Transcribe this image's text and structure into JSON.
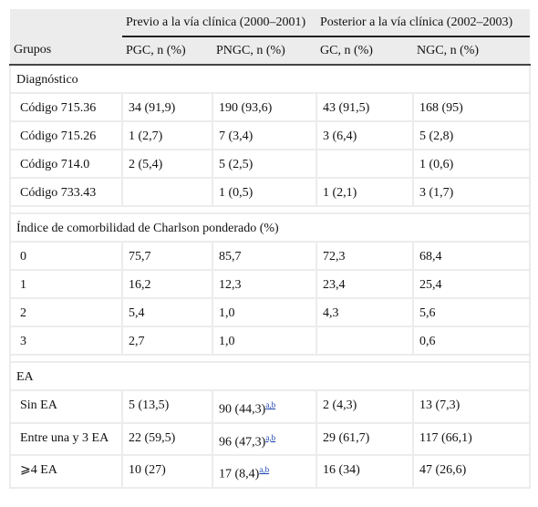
{
  "header": {
    "group_label": "Grupos",
    "spans": [
      "Previo a la vía clínica (2000–2001)",
      "Posterior a la vía clínica (2002–2003)"
    ],
    "columns": [
      "PGC, n (%)",
      "PNGC, n (%)",
      "GC, n (%)",
      "NGC, n (%)"
    ]
  },
  "sections": [
    {
      "title": "Diagnóstico",
      "rows": [
        [
          "Código 715.36",
          "34 (91,9)",
          "190 (93,6)",
          "43 (91,5)",
          "168 (95)"
        ],
        [
          "Código 715.26",
          "1 (2,7)",
          "7 (3,4)",
          "3 (6,4)",
          "5 (2,8)"
        ],
        [
          "Código 714.0",
          "2 (5,4)",
          "5 (2,5)",
          null,
          "1 (0,6)"
        ],
        [
          "Código 733.43",
          null,
          "1 (0,5)",
          "1 (2,1)",
          "3 (1,7)"
        ]
      ]
    },
    {
      "title": "Índice de comorbilidad de Charlson ponderado (%)",
      "rows": [
        [
          "0",
          "75,7",
          "85,7",
          "72,3",
          "68,4"
        ],
        [
          "1",
          "16,2",
          "12,3",
          "23,4",
          "25,4"
        ],
        [
          "2",
          "5,4",
          "1,0",
          "4,3",
          "5,6"
        ],
        [
          "3",
          "2,7",
          "1,0",
          null,
          "0,6"
        ]
      ]
    },
    {
      "title": "EA",
      "rows": [
        [
          "Sin EA",
          "5 (13,5)",
          {
            "text": "90 (44,3)",
            "sup": "a,b"
          },
          "2 (4,3)",
          "13 (7,3)"
        ],
        [
          "Entre una y 3 EA",
          "22 (59,5)",
          {
            "text": "96 (47,3)",
            "sup": "a,b"
          },
          "29 (61,7)",
          "117 (66,1)"
        ],
        [
          "⩾4 EA",
          "10 (27)",
          {
            "text": "17 (8,4)",
            "sup": "a,b"
          },
          "16 (34)",
          "47 (26,6)"
        ]
      ]
    }
  ]
}
